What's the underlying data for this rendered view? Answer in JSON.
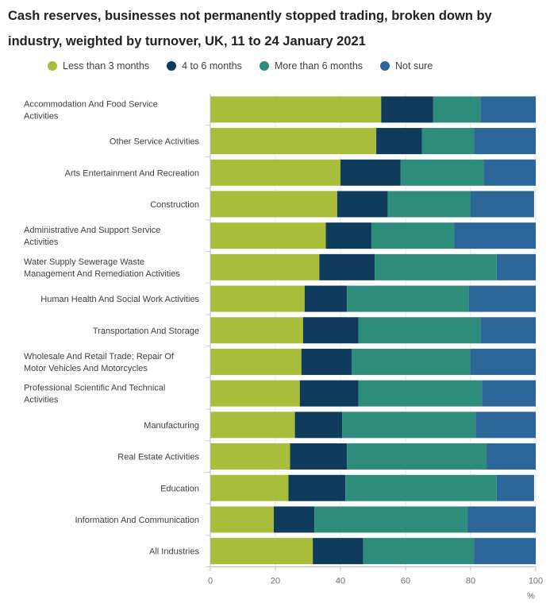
{
  "chart_data": {
    "type": "bar",
    "orientation": "horizontal",
    "stacked": true,
    "title": "Cash reserves, businesses not permanently stopped trading, broken down by industry, weighted by turnover, UK, 11 to 24 January 2021",
    "xlabel": "%",
    "ylabel": "",
    "xlim": [
      0,
      100
    ],
    "xticks": [
      "0",
      "20",
      "40",
      "60",
      "80",
      "100"
    ],
    "legend_position": "top",
    "categories": [
      [
        "Accommodation And Food Service",
        "Activities"
      ],
      [
        "Other Service Activities"
      ],
      [
        "Arts Entertainment And Recreation"
      ],
      [
        "Construction"
      ],
      [
        "Administrative And Support Service",
        "Activities"
      ],
      [
        "Water Supply Sewerage Waste",
        "Management And Remediation Activities"
      ],
      [
        "Human Health And Social Work Activities"
      ],
      [
        "Transportation And Storage"
      ],
      [
        "Wholesale And Retail Trade; Repair Of",
        "Motor Vehicles And Motorcycles"
      ],
      [
        "Professional Scientific And Technical",
        "Activities"
      ],
      [
        "Manufacturing"
      ],
      [
        "Real Estate Activities"
      ],
      [
        "Education"
      ],
      [
        "Information And Communication"
      ],
      [
        "All Industries"
      ]
    ],
    "series": [
      {
        "name": "Less than 3 months",
        "color": "#a8bd3a",
        "values": [
          52.5,
          51,
          40,
          39,
          35.5,
          33.5,
          29,
          28.5,
          28,
          27.5,
          26,
          24.5,
          24,
          19.5,
          31.5
        ]
      },
      {
        "name": "4 to 6 months",
        "color": "#0f3b5c",
        "values": [
          16,
          14,
          18.5,
          15.5,
          14,
          17,
          13,
          17,
          15.5,
          18,
          14.5,
          17.5,
          17.5,
          12.5,
          15.5
        ]
      },
      {
        "name": "More than 6 months",
        "color": "#2e8c7b",
        "values": [
          14.5,
          16,
          25.5,
          25.5,
          25.5,
          37.5,
          37.5,
          37.5,
          36.5,
          38,
          41,
          43,
          46.5,
          47,
          34
        ]
      },
      {
        "name": "Not sure",
        "color": "#2c6698",
        "values": [
          17,
          19,
          16,
          19.5,
          25,
          12,
          20.5,
          17,
          20,
          16.5,
          18.5,
          15,
          11.5,
          21,
          19
        ]
      }
    ]
  }
}
